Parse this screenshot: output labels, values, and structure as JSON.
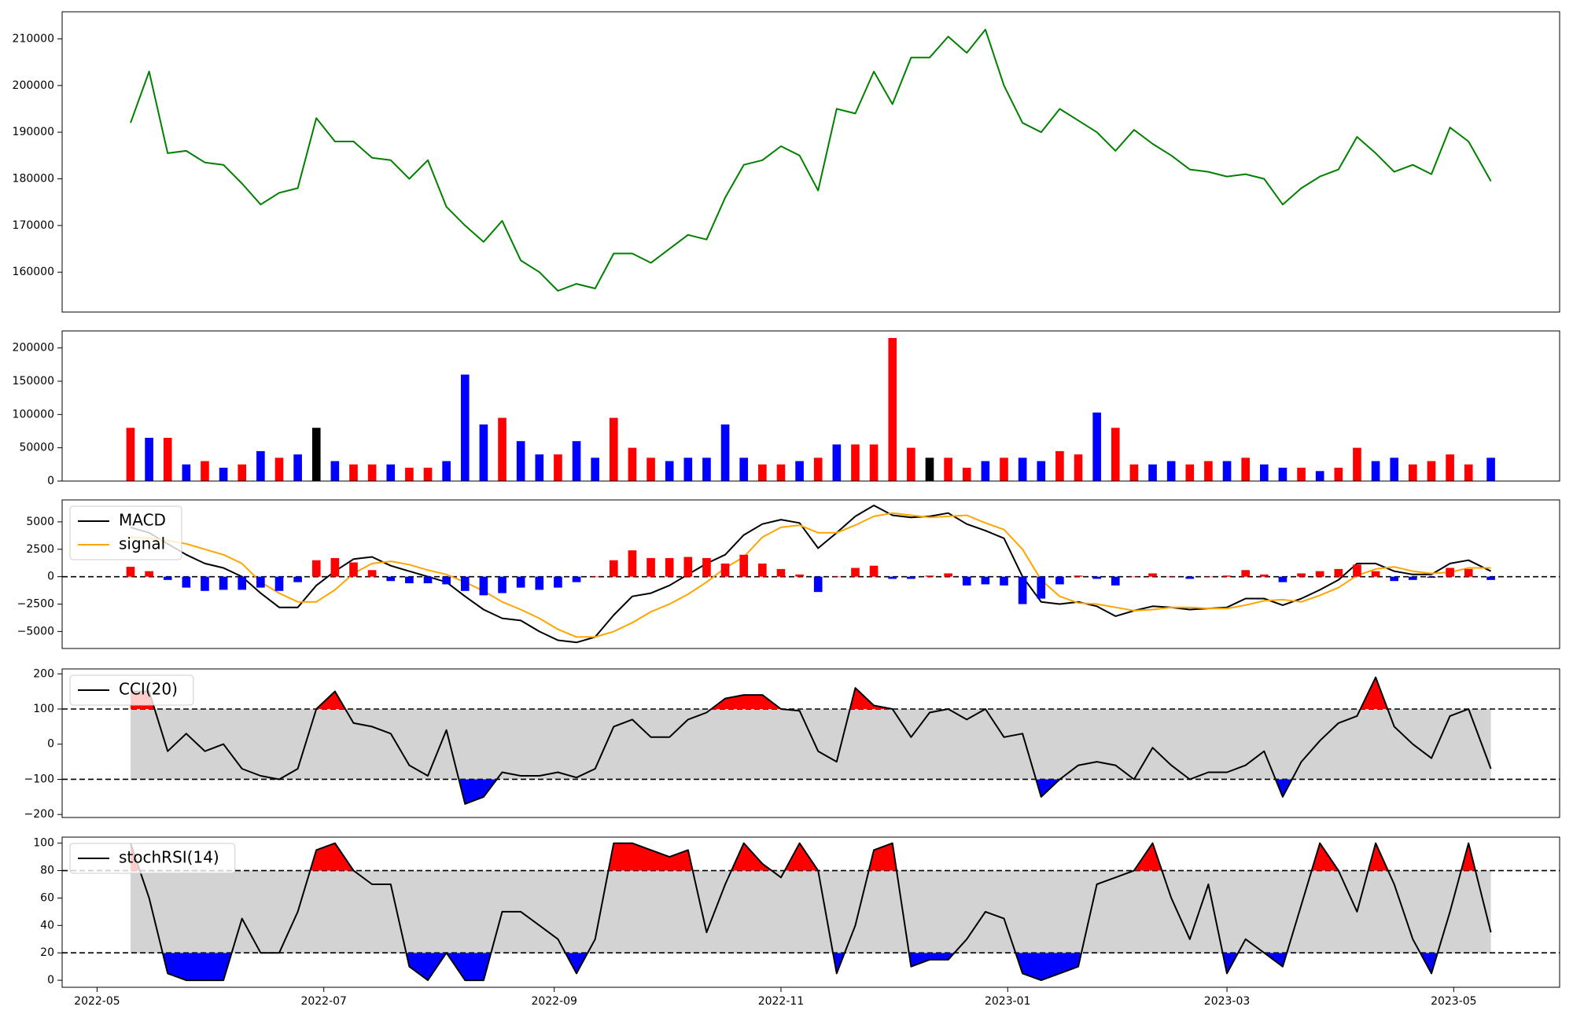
{
  "chart_data": [
    {
      "type": "line",
      "x": [
        9,
        14,
        19,
        24,
        29,
        34,
        39,
        44,
        49,
        54,
        59,
        64,
        69,
        74,
        79,
        84,
        89,
        94,
        99,
        104,
        109,
        114,
        119,
        124,
        129,
        134,
        139,
        144,
        149,
        154,
        159,
        164,
        169,
        174,
        179,
        184,
        189,
        194,
        199,
        204,
        209,
        214,
        219,
        224,
        229,
        234,
        239,
        244,
        249,
        254,
        259,
        264,
        269,
        274,
        279,
        284,
        289,
        294,
        299,
        304,
        309,
        314,
        319,
        324,
        329,
        334,
        339,
        344,
        349,
        354,
        359,
        364,
        369,
        375
      ],
      "xlim": [
        -9.4,
        393.5
      ],
      "values": [
        192000,
        203000,
        185500,
        186000,
        183500,
        183000,
        179000,
        174500,
        177000,
        178000,
        193000,
        188000,
        188000,
        184500,
        184000,
        180000,
        184000,
        174000,
        170000,
        166500,
        171000,
        162500,
        160000,
        156000,
        157500,
        156500,
        164000,
        164000,
        162000,
        165000,
        168000,
        167000,
        176000,
        183000,
        184000,
        187000,
        185000,
        177500,
        195000,
        194000,
        203000,
        196000,
        206000,
        206000,
        210500,
        207000,
        212000,
        200000,
        192000,
        190000,
        195000,
        192500,
        190000,
        186000,
        190500,
        187500,
        185000,
        182000,
        181500,
        180500,
        181000,
        180000,
        174500,
        178000,
        180500,
        182000,
        189000,
        185500,
        181500,
        183000,
        181000,
        191000,
        188000,
        179500
      ],
      "color": "#008000",
      "ylim": [
        151450,
        215800
      ],
      "yticks": [
        160000,
        170000,
        180000,
        190000,
        200000,
        210000
      ]
    },
    {
      "type": "bar",
      "values": [
        80000,
        65000,
        65000,
        25000,
        30000,
        20000,
        25000,
        45000,
        35000,
        40000,
        80000,
        30000,
        25000,
        25000,
        25000,
        20000,
        20000,
        30000,
        160000,
        85000,
        95000,
        60000,
        40000,
        40000,
        60000,
        35000,
        95000,
        50000,
        35000,
        30000,
        35000,
        35000,
        85000,
        35000,
        25000,
        25000,
        30000,
        35000,
        55000,
        55000,
        55000,
        215000,
        50000,
        35000,
        35000,
        20000,
        30000,
        35000,
        35000,
        30000,
        45000,
        40000,
        103000,
        80000,
        25000,
        25000,
        30000,
        25000,
        30000,
        30000,
        35000,
        25000,
        20000,
        20000,
        15000,
        20000,
        50000,
        30000,
        35000,
        25000,
        30000,
        40000,
        25000,
        35000
      ],
      "colors": [
        "red",
        "blue",
        "red",
        "blue",
        "red",
        "blue",
        "red",
        "blue",
        "red",
        "blue",
        "black",
        "blue",
        "red",
        "red",
        "blue",
        "red",
        "red",
        "blue",
        "blue",
        "blue",
        "red",
        "blue",
        "blue",
        "red",
        "blue",
        "blue",
        "red",
        "red",
        "red",
        "blue",
        "blue",
        "blue",
        "blue",
        "blue",
        "red",
        "red",
        "blue",
        "red",
        "blue",
        "red",
        "red",
        "red",
        "red",
        "black",
        "red",
        "red",
        "blue",
        "red",
        "blue",
        "blue",
        "red",
        "red",
        "blue",
        "red",
        "red",
        "blue",
        "blue",
        "red",
        "red",
        "blue",
        "red",
        "blue",
        "blue",
        "red",
        "blue",
        "red",
        "red",
        "blue",
        "blue",
        "red",
        "red",
        "red",
        "red",
        "blue"
      ],
      "ylim": [
        0,
        225600
      ],
      "yticks": [
        0,
        50000,
        100000,
        150000,
        200000
      ]
    },
    {
      "type": "line",
      "series": [
        {
          "name": "MACD",
          "color": "#000000",
          "values": [
            4500,
            4000,
            3000,
            2000,
            1200,
            800,
            0,
            -1500,
            -2800,
            -2800,
            -800,
            500,
            1600,
            1800,
            1000,
            500,
            0,
            -500,
            -1800,
            -3000,
            -3800,
            -4000,
            -5000,
            -5800,
            -6000,
            -5500,
            -3500,
            -1800,
            -1500,
            -800,
            200,
            1200,
            2000,
            3800,
            4800,
            5200,
            4900,
            2600,
            4000,
            5500,
            6500,
            5600,
            5400,
            5500,
            5800,
            4800,
            4200,
            3500,
            0,
            -2300,
            -2500,
            -2300,
            -2700,
            -3600,
            -3100,
            -2700,
            -2800,
            -3000,
            -2900,
            -2800,
            -2000,
            -2000,
            -2600,
            -2000,
            -1200,
            -300,
            1200,
            1200,
            500,
            200,
            200,
            1200,
            1500,
            500
          ]
        },
        {
          "name": "signal",
          "color": "#ffa500",
          "values": [
            3600,
            3500,
            3300,
            3000,
            2500,
            2000,
            1200,
            -500,
            -1500,
            -2300,
            -2300,
            -1200,
            300,
            1200,
            1400,
            1100,
            600,
            200,
            -500,
            -1300,
            -2300,
            -3000,
            -3800,
            -4800,
            -5500,
            -5500,
            -5000,
            -4200,
            -3200,
            -2500,
            -1600,
            -500,
            800,
            1800,
            3600,
            4500,
            4700,
            4000,
            4000,
            4700,
            5500,
            5800,
            5600,
            5400,
            5500,
            5600,
            4900,
            4300,
            2500,
            -300,
            -1800,
            -2400,
            -2500,
            -2800,
            -3100,
            -3000,
            -2800,
            -2800,
            -2900,
            -2900,
            -2600,
            -2200,
            -2100,
            -2300,
            -1700,
            -1000,
            100,
            700,
            900,
            500,
            300,
            400,
            800,
            800
          ]
        },
        {
          "type": "bar",
          "color": "#ff0000",
          "negative_color": "#0000ff",
          "values": [
            900,
            500,
            -300,
            -1000,
            -1300,
            -1200,
            -1200,
            -1000,
            -1300,
            -500,
            1500,
            1700,
            1300,
            600,
            -400,
            -600,
            -600,
            -700,
            -1300,
            -1700,
            -1500,
            -1000,
            -1200,
            -1000,
            -500,
            0,
            1500,
            2400,
            1700,
            1700,
            1800,
            1700,
            1200,
            2000,
            1200,
            700,
            200,
            -1400,
            0,
            800,
            1000,
            -200,
            -200,
            100,
            300,
            -800,
            -700,
            -800,
            -2500,
            -2000,
            -700,
            100,
            -200,
            -800,
            0,
            300,
            0,
            -200,
            0,
            100,
            600,
            200,
            -500,
            300,
            500,
            700,
            1100,
            500,
            -400,
            -300,
            -100,
            800,
            700,
            -300
          ]
        }
      ],
      "hlines": [
        0
      ],
      "legend": "upper left",
      "ylim": [
        -6550,
        7000
      ],
      "yticks": [
        {
          "value": -5000,
          "label": "−5000"
        },
        {
          "value": -2500,
          "label": "−2500"
        },
        0,
        2500,
        5000
      ]
    },
    {
      "type": "line",
      "series": [
        {
          "name": "CCI(20)",
          "color": "#000000",
          "values": [
            150,
            150,
            -20,
            30,
            -20,
            0,
            -70,
            -90,
            -100,
            -70,
            100,
            150,
            60,
            50,
            30,
            -60,
            -90,
            40,
            -170,
            -150,
            -80,
            -90,
            -90,
            -80,
            -95,
            -70,
            50,
            70,
            20,
            20,
            70,
            90,
            130,
            140,
            140,
            100,
            95,
            -20,
            -50,
            160,
            110,
            100,
            20,
            90,
            100,
            70,
            100,
            20,
            30,
            -150,
            -100,
            -60,
            -50,
            -60,
            -100,
            -10,
            -60,
            -100,
            -80,
            -80,
            -60,
            -20,
            -150,
            -50,
            10,
            60,
            80,
            190,
            50,
            0,
            -40,
            80,
            100,
            -70
          ]
        }
      ],
      "hlines": [
        -100,
        100
      ],
      "band_fill": "#d3d3d3",
      "above_color": "#ff0000",
      "below_color": "#0000ff",
      "legend": "upper left",
      "ylim": [
        -208.5,
        214
      ],
      "yticks": [
        {
          "value": -200,
          "label": "−200"
        },
        {
          "value": -100,
          "label": "−100"
        },
        0,
        100,
        200
      ]
    },
    {
      "type": "line",
      "series": [
        {
          "name": "stochRSI(14)",
          "color": "#000000",
          "values": [
            100,
            60,
            5,
            0,
            0,
            0,
            45,
            20,
            20,
            50,
            95,
            100,
            80,
            70,
            70,
            10,
            0,
            20,
            0,
            0,
            50,
            50,
            40,
            30,
            5,
            30,
            100,
            100,
            95,
            90,
            95,
            35,
            70,
            100,
            85,
            75,
            100,
            80,
            5,
            40,
            95,
            100,
            10,
            15,
            15,
            30,
            50,
            45,
            5,
            0,
            5,
            10,
            70,
            75,
            80,
            100,
            60,
            30,
            70,
            5,
            30,
            20,
            10,
            55,
            100,
            80,
            50,
            100,
            70,
            30,
            5,
            50,
            100,
            35
          ]
        }
      ],
      "hlines": [
        20,
        80
      ],
      "band_fill": "#d3d3d3",
      "above_color": "#ff0000",
      "below_color": "#0000ff",
      "legend": "upper left",
      "ylim": [
        -5.1,
        104.4
      ],
      "yticks": [
        0,
        20,
        40,
        60,
        80,
        100
      ],
      "xticks": [
        {
          "value": 0,
          "label": "2022-05"
        },
        {
          "value": 61,
          "label": "2022-07"
        },
        {
          "value": 123,
          "label": "2022-09"
        },
        {
          "value": 184,
          "label": "2022-11"
        },
        {
          "value": 245,
          "label": "2023-01"
        },
        {
          "value": 304,
          "label": "2023-03"
        },
        {
          "value": 365,
          "label": "2023-05"
        }
      ]
    }
  ]
}
